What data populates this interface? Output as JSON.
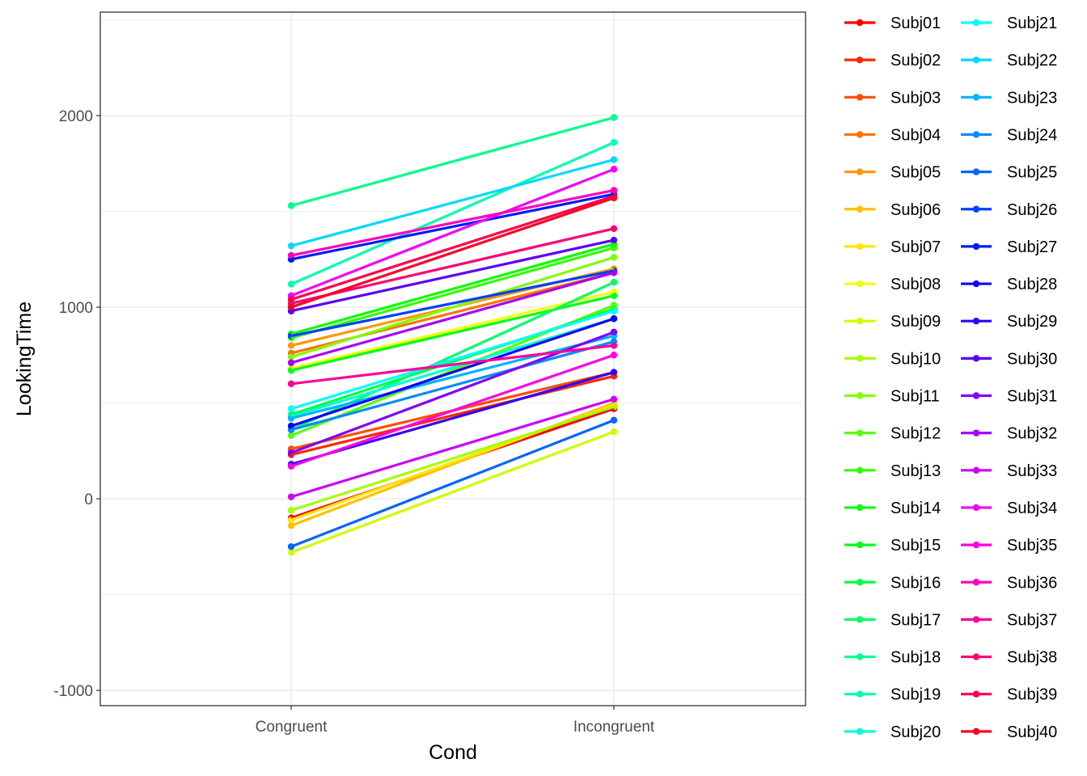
{
  "chart_data": {
    "type": "line",
    "xlabel": "Cond",
    "ylabel": "LookingTime",
    "categories": [
      "Congruent",
      "Incongruent"
    ],
    "ylim": [
      -1080,
      2540
    ],
    "yticks": [
      -1000,
      0,
      1000,
      2000
    ],
    "ytick_labels": [
      "-1000",
      "0",
      "1000",
      "2000"
    ],
    "grid": true,
    "legend_position": "right",
    "series": [
      {
        "name": "Subj01",
        "color": "#FF0000",
        "values": [
          -100,
          470
        ]
      },
      {
        "name": "Subj02",
        "color": "#FF2600",
        "values": [
          230,
          640
        ]
      },
      {
        "name": "Subj03",
        "color": "#FF4D00",
        "values": [
          260,
          660
        ]
      },
      {
        "name": "Subj04",
        "color": "#FF7300",
        "values": [
          760,
          1180
        ]
      },
      {
        "name": "Subj05",
        "color": "#FF9900",
        "values": [
          800,
          1200
        ]
      },
      {
        "name": "Subj06",
        "color": "#FFBF00",
        "values": [
          -140,
          500
        ]
      },
      {
        "name": "Subj07",
        "color": "#FFE500",
        "values": [
          -110,
          490
        ]
      },
      {
        "name": "Subj08",
        "color": "#F2FF00",
        "values": [
          680,
          1080
        ]
      },
      {
        "name": "Subj09",
        "color": "#CCFF00",
        "values": [
          -280,
          350
        ]
      },
      {
        "name": "Subj10",
        "color": "#A6FF00",
        "values": [
          -60,
          480
        ]
      },
      {
        "name": "Subj11",
        "color": "#80FF00",
        "values": [
          740,
          1260
        ]
      },
      {
        "name": "Subj12",
        "color": "#59FF00",
        "values": [
          330,
          1010
        ]
      },
      {
        "name": "Subj13",
        "color": "#33FF00",
        "values": [
          840,
          1310
        ]
      },
      {
        "name": "Subj14",
        "color": "#0DFF00",
        "values": [
          860,
          1330
        ]
      },
      {
        "name": "Subj15",
        "color": "#00FF1A",
        "values": [
          670,
          1060
        ]
      },
      {
        "name": "Subj16",
        "color": "#00FF40",
        "values": [
          440,
          990
        ]
      },
      {
        "name": "Subj17",
        "color": "#00FF66",
        "values": [
          360,
          1130
        ]
      },
      {
        "name": "Subj18",
        "color": "#00FF8C",
        "values": [
          1530,
          1990
        ]
      },
      {
        "name": "Subj19",
        "color": "#00FFB2",
        "values": [
          1120,
          1860
        ]
      },
      {
        "name": "Subj20",
        "color": "#00FFD9",
        "values": [
          430,
          940
        ]
      },
      {
        "name": "Subj21",
        "color": "#00FFFF",
        "values": [
          470,
          980
        ]
      },
      {
        "name": "Subj22",
        "color": "#00D9FF",
        "values": [
          1320,
          1770
        ]
      },
      {
        "name": "Subj23",
        "color": "#00B3FF",
        "values": [
          420,
          850
        ]
      },
      {
        "name": "Subj24",
        "color": "#008CFF",
        "values": [
          360,
          820
        ]
      },
      {
        "name": "Subj25",
        "color": "#0066FF",
        "values": [
          -250,
          410
        ]
      },
      {
        "name": "Subj26",
        "color": "#0040FF",
        "values": [
          850,
          1190
        ]
      },
      {
        "name": "Subj27",
        "color": "#001AFF",
        "values": [
          1250,
          1590
        ]
      },
      {
        "name": "Subj28",
        "color": "#0D00FF",
        "values": [
          380,
          940
        ]
      },
      {
        "name": "Subj29",
        "color": "#3300FF",
        "values": [
          180,
          660
        ]
      },
      {
        "name": "Subj30",
        "color": "#5900FF",
        "values": [
          980,
          1350
        ]
      },
      {
        "name": "Subj31",
        "color": "#8000FF",
        "values": [
          240,
          870
        ]
      },
      {
        "name": "Subj32",
        "color": "#A600FF",
        "values": [
          710,
          1180
        ]
      },
      {
        "name": "Subj33",
        "color": "#CC00FF",
        "values": [
          10,
          520
        ]
      },
      {
        "name": "Subj34",
        "color": "#F200FF",
        "values": [
          1060,
          1720
        ]
      },
      {
        "name": "Subj35",
        "color": "#FF00E6",
        "values": [
          170,
          750
        ]
      },
      {
        "name": "Subj36",
        "color": "#FF00BF",
        "values": [
          1270,
          1610
        ]
      },
      {
        "name": "Subj37",
        "color": "#FF0099",
        "values": [
          600,
          800
        ]
      },
      {
        "name": "Subj38",
        "color": "#FF0073",
        "values": [
          1020,
          1410
        ]
      },
      {
        "name": "Subj39",
        "color": "#FF004D",
        "values": [
          1040,
          1580
        ]
      },
      {
        "name": "Subj40",
        "color": "#FF0026",
        "values": [
          1000,
          1570
        ]
      }
    ]
  }
}
